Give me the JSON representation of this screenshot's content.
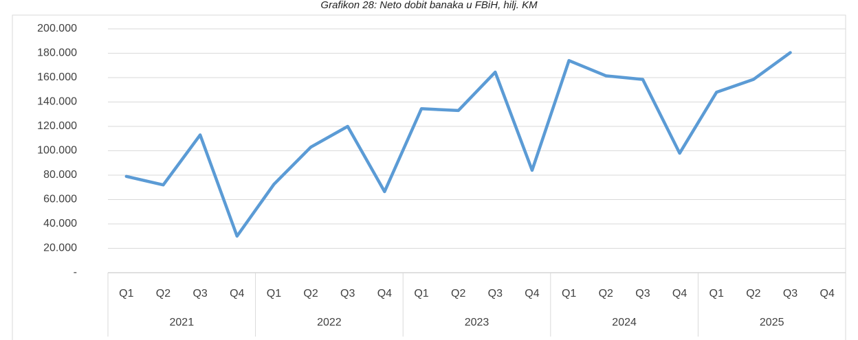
{
  "chart_data": {
    "type": "line",
    "title": "Grafikon 28: Neto dobit banaka u FBiH, hilj. KM",
    "categories": [
      "Q1",
      "Q2",
      "Q3",
      "Q4",
      "Q1",
      "Q2",
      "Q3",
      "Q4",
      "Q1",
      "Q2",
      "Q3",
      "Q4",
      "Q1",
      "Q2",
      "Q3",
      "Q4",
      "Q1",
      "Q2",
      "Q3",
      "Q4"
    ],
    "years": [
      "2021",
      "2022",
      "2023",
      "2024",
      "2025"
    ],
    "series": [
      {
        "name": "Neto dobit",
        "color": "#5b9bd5",
        "values": [
          79000,
          72000,
          113000,
          30000,
          72500,
          103000,
          120000,
          66500,
          134500,
          133000,
          164500,
          84000,
          174000,
          161500,
          158500,
          98000,
          148000,
          158500,
          180500,
          null
        ]
      }
    ],
    "ylim": [
      0,
      200000
    ],
    "yticks": [
      {
        "value": 0,
        "label": "-"
      },
      {
        "value": 20000,
        "label": "20.000"
      },
      {
        "value": 40000,
        "label": "40.000"
      },
      {
        "value": 60000,
        "label": "60.000"
      },
      {
        "value": 80000,
        "label": "80.000"
      },
      {
        "value": 100000,
        "label": "100.000"
      },
      {
        "value": 120000,
        "label": "120.000"
      },
      {
        "value": 140000,
        "label": "140.000"
      },
      {
        "value": 160000,
        "label": "160.000"
      },
      {
        "value": 180000,
        "label": "180.000"
      },
      {
        "value": 200000,
        "label": "200.000"
      }
    ],
    "grid": true
  }
}
